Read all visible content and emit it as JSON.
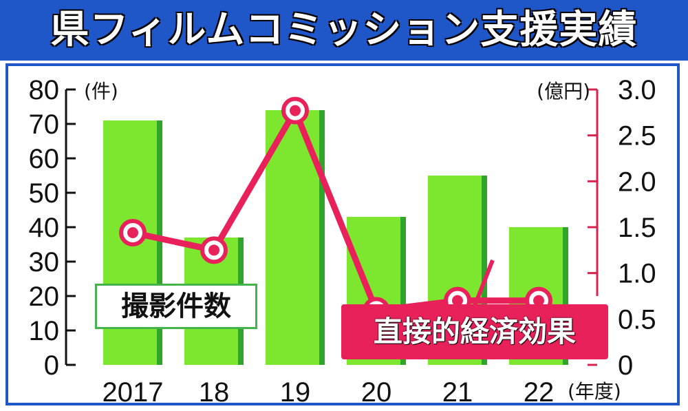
{
  "title": "県フィルムコミッション支援実績",
  "chart_data": {
    "type": "bar+line",
    "categories": [
      "2017",
      "18",
      "19",
      "20",
      "21",
      "22"
    ],
    "x_unit": "(年度)",
    "series": [
      {
        "name": "撮影件数",
        "type": "bar",
        "axis": "left",
        "values": [
          71,
          37,
          74,
          43,
          55,
          40
        ],
        "color": "#7de62e"
      },
      {
        "name": "直接的経済効果",
        "type": "line",
        "axis": "right",
        "values": [
          1.44,
          1.25,
          2.77,
          0.59,
          0.7,
          0.7
        ],
        "color": "#e8215a"
      }
    ],
    "y_left": {
      "unit": "(件)",
      "range": [
        0,
        80
      ],
      "ticks": [
        0,
        10,
        20,
        30,
        40,
        50,
        60,
        70,
        80
      ]
    },
    "y_right": {
      "unit": "(億円)",
      "range": [
        0,
        3.0
      ],
      "ticks": [
        "0",
        "0.5",
        "1.0",
        "1.5",
        "2.0",
        "2.5",
        "3.0"
      ]
    },
    "grid": false,
    "legend": "inside-bottom"
  }
}
